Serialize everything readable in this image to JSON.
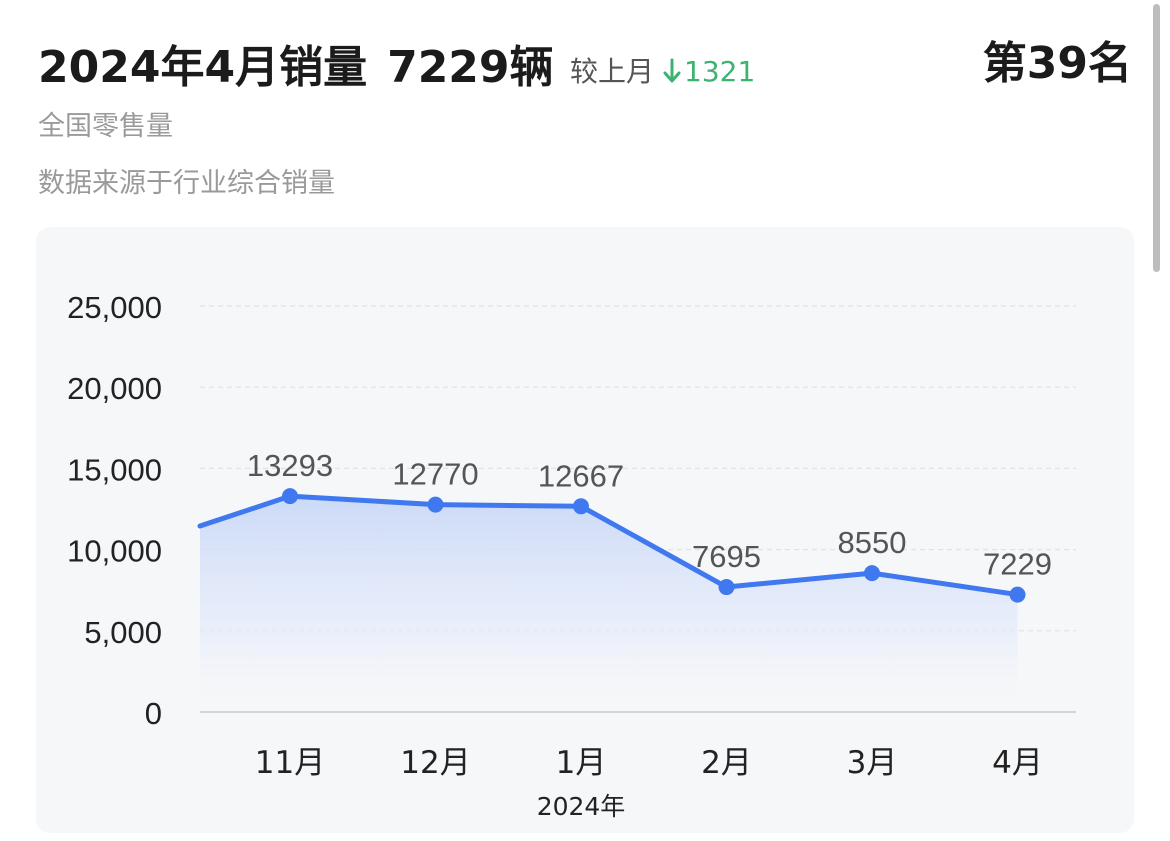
{
  "header": {
    "title_period": "2024年4月销量",
    "title_value": "7229辆",
    "compare_label": "较上月",
    "compare_delta": "1321",
    "compare_direction": "down",
    "rank": "第39名",
    "scope": "全国零售量",
    "source": "数据来源于行业综合销量"
  },
  "colors": {
    "line": "#4079ef",
    "down": "#3cb371"
  },
  "chart_data": {
    "type": "line",
    "categories": [
      "11月",
      "12月",
      "1月",
      "2月",
      "3月",
      "4月"
    ],
    "series": [
      {
        "values": [
          13293,
          12770,
          12667,
          7695,
          8550,
          7229
        ]
      }
    ],
    "ylim": [
      0,
      25000
    ],
    "yticks": [
      0,
      5000,
      10000,
      15000,
      20000,
      25000
    ],
    "ytick_labels": [
      "0",
      "5,000",
      "10,000",
      "15,000",
      "20,000",
      "25,000"
    ],
    "xlabel": "2024年",
    "ylabel": "",
    "grid": true,
    "area_fill": true
  }
}
